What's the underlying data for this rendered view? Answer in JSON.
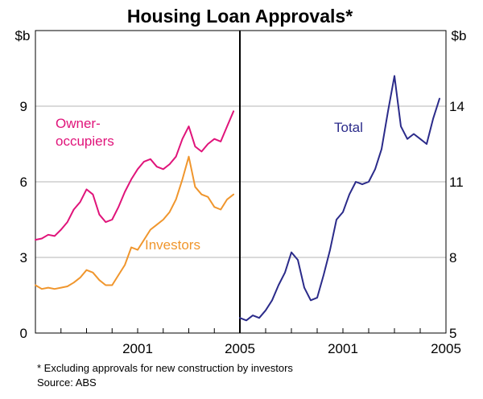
{
  "chart_data": {
    "title": "Housing Loan Approvals*",
    "footnote": "* Excluding approvals for new construction by investors",
    "source": "Source: ABS",
    "panels": [
      {
        "type": "line",
        "unit_label": "$b",
        "ylim": [
          0,
          12
        ],
        "yticks": [
          0,
          3,
          6,
          9
        ],
        "xlim": [
          1997.0,
          2005.0
        ],
        "xticks": [
          {
            "value": 2001.0,
            "label": "2001"
          },
          {
            "value": 2005.0,
            "label": "2005"
          }
        ],
        "grid": true,
        "series": [
          {
            "name": "Owner-occupiers",
            "label_lines": [
              "Owner-",
              "occupiers"
            ],
            "color": "#e0147a",
            "x": [
              1997.0,
              1997.25,
              1997.5,
              1997.75,
              1998.0,
              1998.25,
              1998.5,
              1998.75,
              1999.0,
              1999.25,
              1999.5,
              1999.75,
              2000.0,
              2000.25,
              2000.5,
              2000.75,
              2001.0,
              2001.25,
              2001.5,
              2001.75,
              2002.0,
              2002.25,
              2002.5,
              2002.75,
              2003.0,
              2003.25,
              2003.5,
              2003.75,
              2004.0,
              2004.25,
              2004.5,
              2004.75
            ],
            "values": [
              3.7,
              3.75,
              3.9,
              3.85,
              4.1,
              4.4,
              4.9,
              5.2,
              5.7,
              5.5,
              4.7,
              4.4,
              4.5,
              5.0,
              5.6,
              6.1,
              6.5,
              6.8,
              6.9,
              6.6,
              6.5,
              6.7,
              7.0,
              7.7,
              8.2,
              7.4,
              7.2,
              7.5,
              7.7,
              7.6,
              8.2,
              8.8
            ]
          },
          {
            "name": "Investors",
            "label_lines": [
              "Investors"
            ],
            "color": "#f0962d",
            "x": [
              1997.0,
              1997.25,
              1997.5,
              1997.75,
              1998.0,
              1998.25,
              1998.5,
              1998.75,
              1999.0,
              1999.25,
              1999.5,
              1999.75,
              2000.0,
              2000.25,
              2000.5,
              2000.75,
              2001.0,
              2001.25,
              2001.5,
              2001.75,
              2002.0,
              2002.25,
              2002.5,
              2002.75,
              2003.0,
              2003.25,
              2003.5,
              2003.75,
              2004.0,
              2004.25,
              2004.5,
              2004.75
            ],
            "values": [
              1.9,
              1.75,
              1.8,
              1.75,
              1.8,
              1.85,
              2.0,
              2.2,
              2.5,
              2.4,
              2.1,
              1.9,
              1.9,
              2.3,
              2.7,
              3.4,
              3.3,
              3.7,
              4.1,
              4.3,
              4.5,
              4.8,
              5.3,
              6.1,
              7.0,
              5.8,
              5.5,
              5.4,
              5.0,
              4.9,
              5.3,
              5.5
            ]
          }
        ]
      },
      {
        "type": "line",
        "unit_label": "$b",
        "ylim": [
          5,
          17
        ],
        "yticks": [
          5,
          8,
          11,
          14
        ],
        "xlim": [
          1997.0,
          2005.0
        ],
        "xticks": [
          {
            "value": 2001.0,
            "label": "2001"
          },
          {
            "value": 2005.0,
            "label": "2005"
          }
        ],
        "grid": true,
        "series": [
          {
            "name": "Total",
            "label_lines": [
              "Total"
            ],
            "color": "#2b2b8a",
            "x": [
              1997.0,
              1997.25,
              1997.5,
              1997.75,
              1998.0,
              1998.25,
              1998.5,
              1998.75,
              1999.0,
              1999.25,
              1999.5,
              1999.75,
              2000.0,
              2000.25,
              2000.5,
              2000.75,
              2001.0,
              2001.25,
              2001.5,
              2001.75,
              2002.0,
              2002.25,
              2002.5,
              2002.75,
              2003.0,
              2003.25,
              2003.5,
              2003.75,
              2004.0,
              2004.25,
              2004.5,
              2004.75
            ],
            "values": [
              5.6,
              5.5,
              5.7,
              5.6,
              5.9,
              6.3,
              6.9,
              7.4,
              8.2,
              7.9,
              6.8,
              6.3,
              6.4,
              7.3,
              8.3,
              9.5,
              9.8,
              10.5,
              11.0,
              10.9,
              11.0,
              11.5,
              12.3,
              13.8,
              15.2,
              13.2,
              12.7,
              12.9,
              12.7,
              12.5,
              13.5,
              14.3
            ]
          }
        ]
      }
    ]
  }
}
